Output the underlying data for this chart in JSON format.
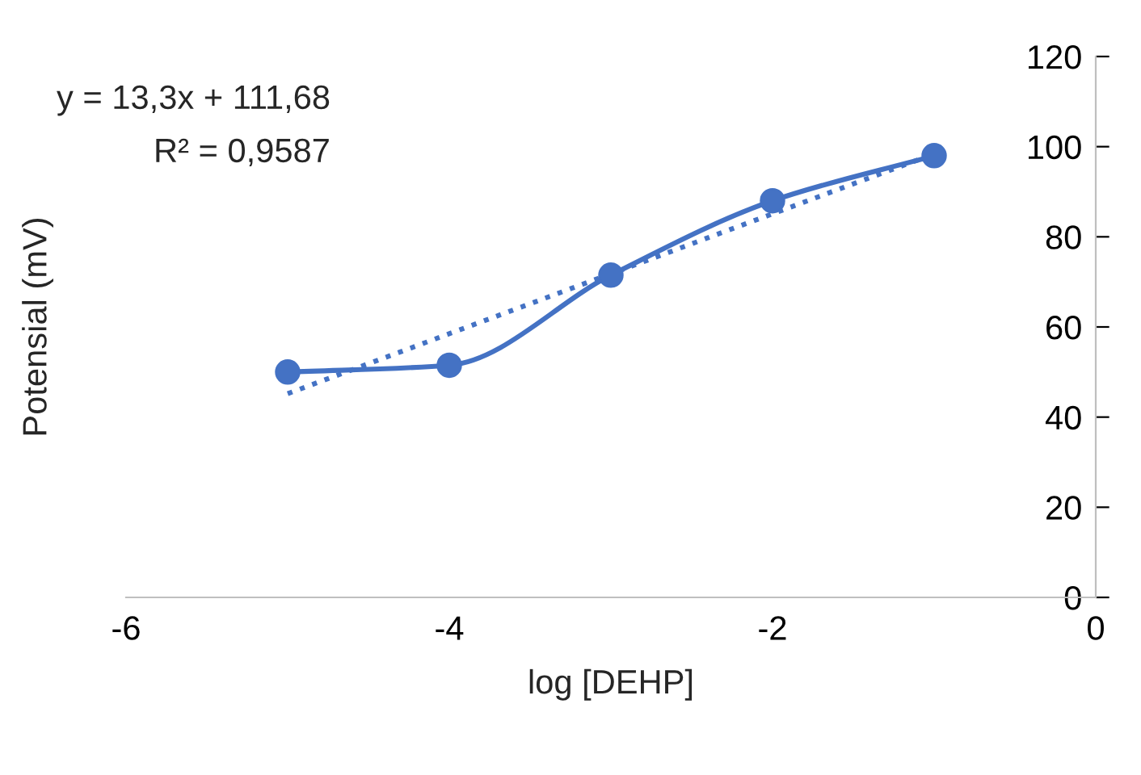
{
  "chart_data": {
    "type": "line",
    "xlabel": "log [DEHP]",
    "ylabel": "Potensial (mV)",
    "annotations": [
      "y = 13,3x + 111,68",
      "R² = 0,9587"
    ],
    "series": [
      {
        "type": "line",
        "color": "#4472c4",
        "x": [
          -5,
          -4,
          -3,
          -2,
          -1
        ],
        "values": [
          50,
          51.5,
          71.5,
          88,
          98
        ],
        "marker": "circle",
        "line_style": "solid"
      },
      {
        "type": "line",
        "color": "#4472c4",
        "x": [
          -5,
          -1
        ],
        "values": [
          45.2,
          98.4
        ],
        "marker": "none",
        "line_style": "dotted"
      }
    ],
    "xlim": [
      -6,
      0
    ],
    "xticks": [
      -6,
      -4,
      -2,
      0
    ],
    "ylim": [
      0,
      120
    ],
    "yticks": [
      0,
      20,
      40,
      60,
      80,
      100,
      120
    ],
    "grid": false,
    "legend": false
  }
}
